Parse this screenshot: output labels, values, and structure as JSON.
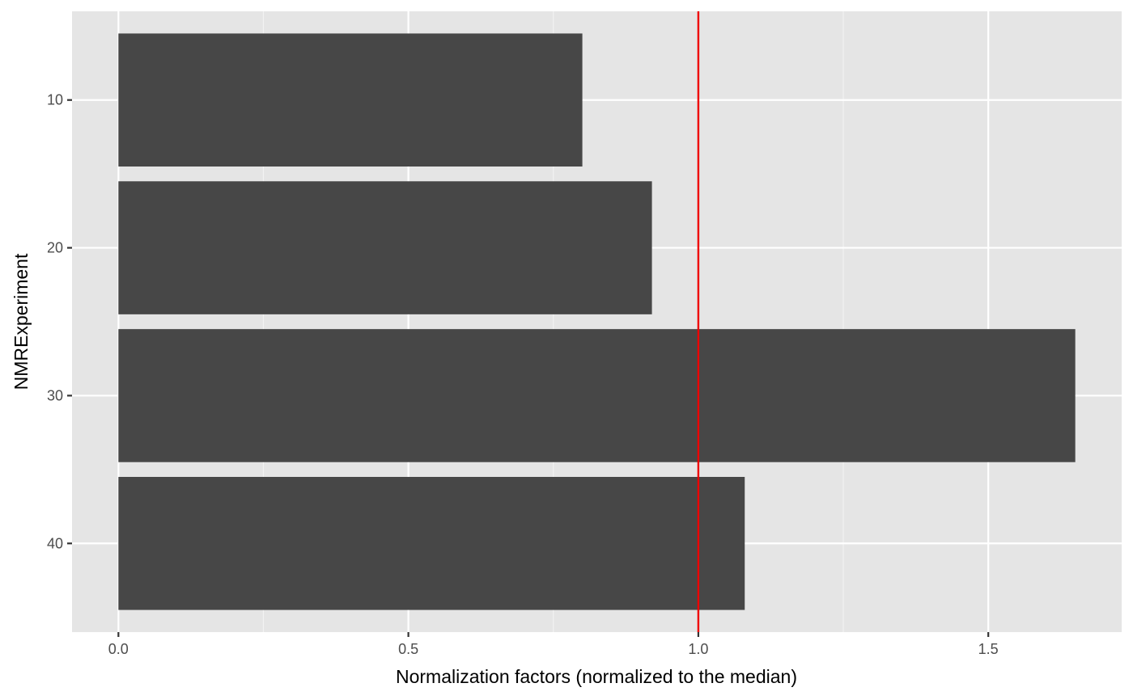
{
  "chart_data": {
    "type": "bar",
    "orientation": "horizontal",
    "title": "",
    "xlabel": "Normalization factors (normalized to the median)",
    "ylabel": "NMRExperiment",
    "categories": [
      "10",
      "20",
      "30",
      "40"
    ],
    "values": [
      0.8,
      0.92,
      1.65,
      1.08
    ],
    "xlim": [
      -0.08,
      1.73
    ],
    "x_ticks": [
      {
        "value": 0.0,
        "label": "0.0"
      },
      {
        "value": 0.5,
        "label": "0.5"
      },
      {
        "value": 1.0,
        "label": "1.0"
      },
      {
        "value": 1.5,
        "label": "1.5"
      }
    ],
    "x_minor_ticks": [
      0.25,
      0.75,
      1.25
    ],
    "reference_line": {
      "x": 1.0,
      "color": "#ee0000"
    },
    "bar_color": "#474747",
    "panel_background": "#e5e5e5",
    "grid": true,
    "legend": "none"
  }
}
